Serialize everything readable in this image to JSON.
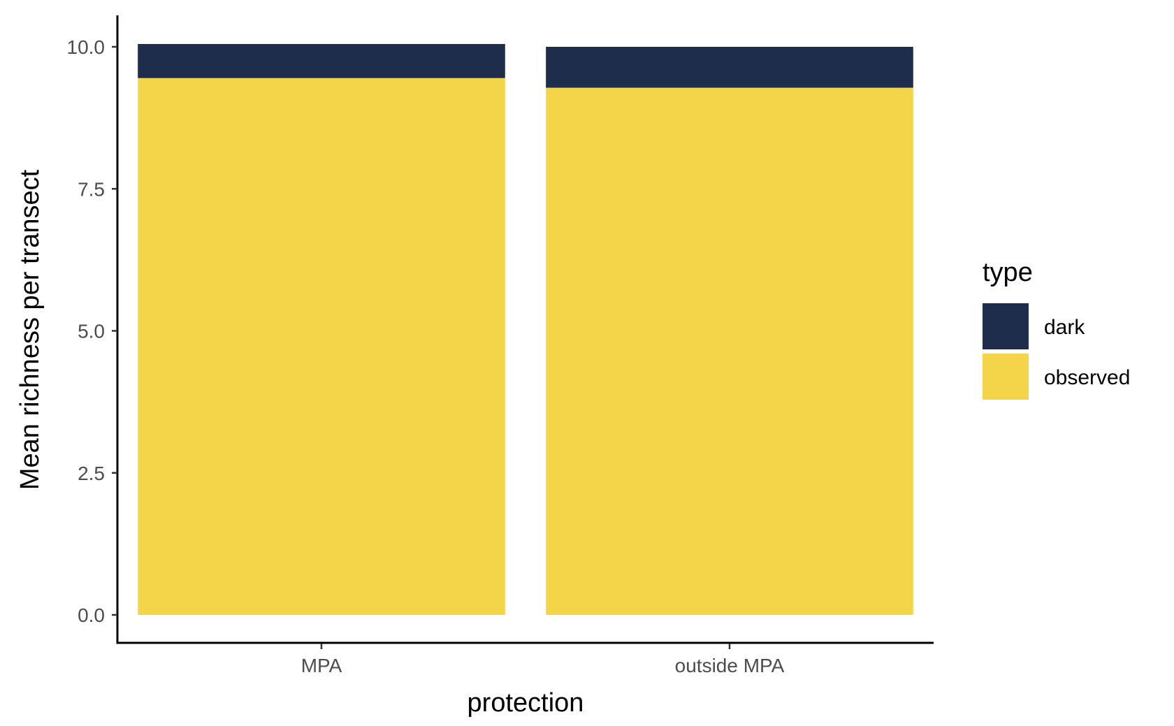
{
  "chart_data": {
    "type": "bar",
    "stacked": true,
    "categories": [
      "MPA",
      "outside MPA"
    ],
    "series": [
      {
        "name": "observed",
        "values": [
          9.45,
          9.28
        ],
        "color": "#F4D54A"
      },
      {
        "name": "dark",
        "values": [
          0.6,
          0.72
        ],
        "color": "#1E2D4B"
      }
    ],
    "xlabel": "protection",
    "ylabel": "Mean richness per transect",
    "ylim": [
      0,
      10.05
    ],
    "yticks": [
      0,
      2.5,
      5,
      7.5,
      10
    ],
    "ytick_labels": [
      "0.0",
      "2.5",
      "5.0",
      "7.5",
      "10.0"
    ],
    "grid": false,
    "legend": {
      "title": "type",
      "position": "right",
      "items": [
        {
          "label": "dark",
          "color": "#1E2D4B"
        },
        {
          "label": "observed",
          "color": "#F4D54A"
        }
      ]
    }
  }
}
